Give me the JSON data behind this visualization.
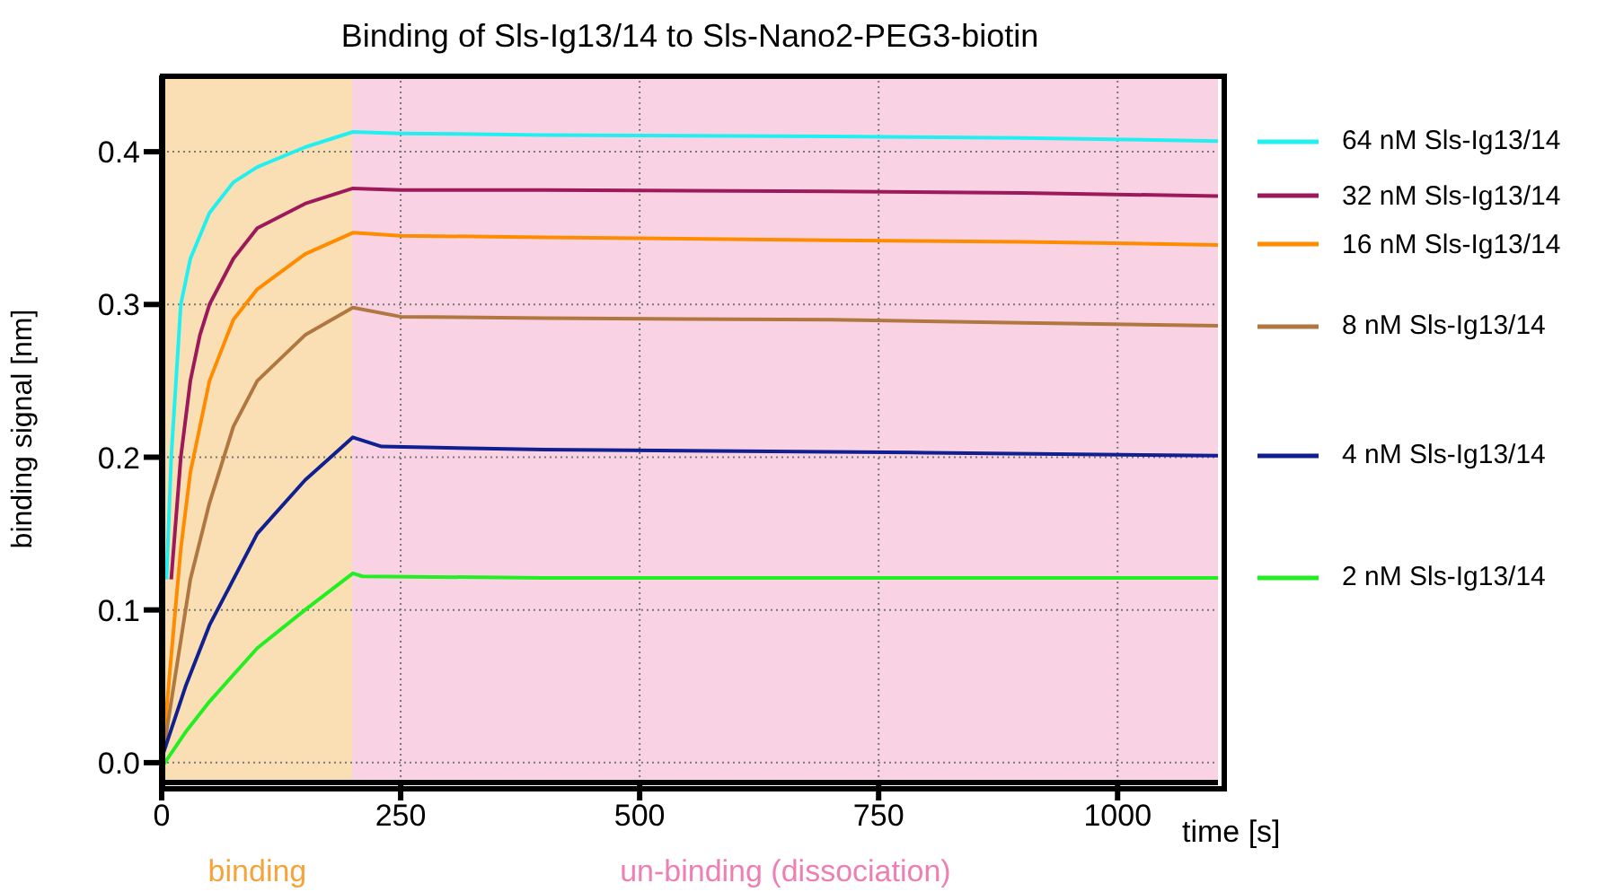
{
  "chart_data": {
    "type": "line",
    "title": "Binding of Sls-Ig13/14 to Sls-Nano2-PEG3-biotin",
    "xlabel": "time [s]",
    "ylabel": "binding signal [nm]",
    "xlim": [
      0,
      1105
    ],
    "xticks": [
      0,
      250,
      500,
      750,
      1000
    ],
    "ylim": [
      -0.013,
      0.45
    ],
    "yticks": [
      {
        "value": 0,
        "label": "0.0"
      },
      {
        "value": 0.1,
        "label": "0.1"
      },
      {
        "value": 0.2,
        "label": "0.2"
      },
      {
        "value": 0.3,
        "label": "0.3"
      },
      {
        "value": 0.4,
        "label": "0.4"
      }
    ],
    "grid": true,
    "legend": "right",
    "marker": "none",
    "line_style": "solid",
    "bands": [
      {
        "axis": "x",
        "from": 0,
        "to": 200,
        "label": "binding",
        "color": "#fadfb5"
      },
      {
        "axis": "x",
        "from": 200,
        "to": 1105,
        "label": "un-binding (dissociation)",
        "color": "#f9d3e3"
      }
    ],
    "series": [
      {
        "name": "64 nM Sls-Ig13/14",
        "color": "#22f0f0",
        "x": [
          5,
          10,
          20,
          30,
          50,
          75,
          100,
          150,
          200,
          250,
          400,
          700,
          900,
          1105
        ],
        "values": [
          0.12,
          0.2,
          0.3,
          0.33,
          0.36,
          0.38,
          0.39,
          0.403,
          0.413,
          0.412,
          0.411,
          0.41,
          0.409,
          0.407
        ]
      },
      {
        "name": "32 nM Sls-Ig13/14",
        "color": "#9c1a5a",
        "x": [
          10,
          20,
          30,
          40,
          50,
          75,
          100,
          150,
          200,
          250,
          400,
          700,
          900,
          1105
        ],
        "values": [
          0.12,
          0.2,
          0.25,
          0.28,
          0.3,
          0.33,
          0.35,
          0.366,
          0.376,
          0.375,
          0.375,
          0.374,
          0.373,
          0.371
        ]
      },
      {
        "name": "16 nM Sls-Ig13/14",
        "color": "#ff8c00",
        "x": [
          3,
          10,
          20,
          30,
          50,
          75,
          100,
          150,
          200,
          250,
          400,
          700,
          900,
          1105
        ],
        "values": [
          0.02,
          0.07,
          0.14,
          0.19,
          0.25,
          0.29,
          0.31,
          0.333,
          0.347,
          0.345,
          0.344,
          0.342,
          0.341,
          0.339
        ]
      },
      {
        "name": "8 nM Sls-Ig13/14",
        "color": "#b07840",
        "x": [
          3,
          10,
          20,
          30,
          50,
          75,
          100,
          150,
          200,
          250,
          400,
          700,
          900,
          1105
        ],
        "values": [
          0.012,
          0.04,
          0.08,
          0.12,
          0.17,
          0.22,
          0.25,
          0.28,
          0.298,
          0.292,
          0.291,
          0.29,
          0.288,
          0.286
        ]
      },
      {
        "name": "4 nM Sls-Ig13/14",
        "color": "#102090",
        "x": [
          0,
          25,
          50,
          75,
          100,
          150,
          200,
          230,
          400,
          800,
          1105
        ],
        "values": [
          0.003,
          0.05,
          0.09,
          0.12,
          0.15,
          0.185,
          0.213,
          0.207,
          0.205,
          0.203,
          0.201
        ]
      },
      {
        "name": "2 nM Sls-Ig13/14",
        "color": "#22ee22",
        "x": [
          0,
          25,
          50,
          100,
          150,
          200,
          210,
          400,
          800,
          1105
        ],
        "values": [
          -0.003,
          0.02,
          0.04,
          0.075,
          0.1,
          0.124,
          0.122,
          0.121,
          0.121,
          0.121
        ]
      }
    ]
  }
}
